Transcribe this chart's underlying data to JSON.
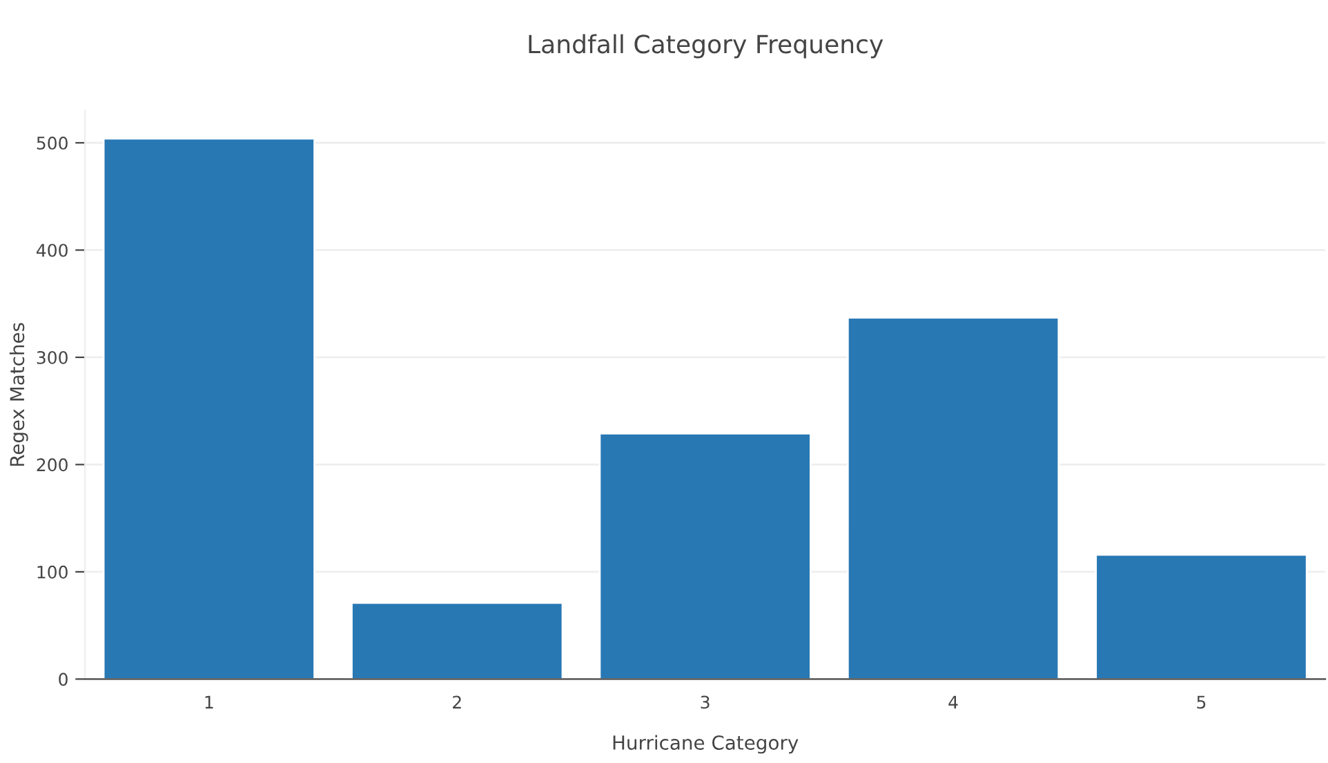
{
  "chart_data": {
    "type": "bar",
    "title": "Landfall Category Frequency",
    "xlabel": "Hurricane Category",
    "ylabel": "Regex Matches",
    "categories": [
      "1",
      "2",
      "3",
      "4",
      "5"
    ],
    "values": [
      504,
      71,
      229,
      337,
      116
    ],
    "color": "#2878b4",
    "ylim": [
      0,
      530
    ],
    "yticks": [
      0,
      100,
      200,
      300,
      400,
      500
    ],
    "grid": "y"
  }
}
